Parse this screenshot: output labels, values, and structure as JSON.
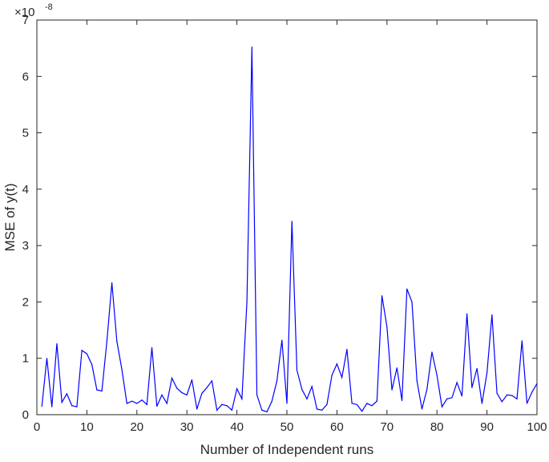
{
  "chart_data": {
    "type": "line",
    "xlabel": "Number of Independent runs",
    "ylabel": "MSE of y(t)",
    "y_multiplier": "×10",
    "y_exponent": "-8",
    "xlim": [
      0,
      100
    ],
    "ylim": [
      0,
      7
    ],
    "xticks": [
      "0",
      "10",
      "20",
      "30",
      "40",
      "50",
      "60",
      "70",
      "80",
      "90",
      "100"
    ],
    "yticks": [
      "0",
      "1",
      "2",
      "3",
      "4",
      "5",
      "6",
      "7"
    ],
    "grid": false,
    "line_color": "#0000ff",
    "x": [
      1,
      2,
      3,
      4,
      5,
      6,
      7,
      8,
      9,
      10,
      11,
      12,
      13,
      14,
      15,
      16,
      17,
      18,
      19,
      20,
      21,
      22,
      23,
      24,
      25,
      26,
      27,
      28,
      29,
      30,
      31,
      32,
      33,
      34,
      35,
      36,
      37,
      38,
      39,
      40,
      41,
      42,
      43,
      44,
      45,
      46,
      47,
      48,
      49,
      50,
      51,
      52,
      53,
      54,
      55,
      56,
      57,
      58,
      59,
      60,
      61,
      62,
      63,
      64,
      65,
      66,
      67,
      68,
      69,
      70,
      71,
      72,
      73,
      74,
      75,
      76,
      77,
      78,
      79,
      80,
      81,
      82,
      83,
      84,
      85,
      86,
      87,
      88,
      89,
      90,
      91,
      92,
      93,
      94,
      95,
      96,
      97,
      98,
      99,
      100
    ],
    "values": [
      0.15,
      1.0,
      0.14,
      1.26,
      0.22,
      0.37,
      0.16,
      0.14,
      1.14,
      1.08,
      0.89,
      0.44,
      0.42,
      1.3,
      2.34,
      1.3,
      0.8,
      0.2,
      0.24,
      0.2,
      0.26,
      0.18,
      1.19,
      0.15,
      0.35,
      0.2,
      0.65,
      0.47,
      0.39,
      0.35,
      0.62,
      0.1,
      0.38,
      0.48,
      0.6,
      0.08,
      0.18,
      0.16,
      0.08,
      0.46,
      0.28,
      2.0,
      6.52,
      0.35,
      0.08,
      0.05,
      0.24,
      0.6,
      1.32,
      0.2,
      3.43,
      0.79,
      0.45,
      0.28,
      0.5,
      0.1,
      0.08,
      0.18,
      0.7,
      0.9,
      0.66,
      1.16,
      0.2,
      0.18,
      0.06,
      0.2,
      0.16,
      0.24,
      2.11,
      1.56,
      0.44,
      0.83,
      0.25,
      2.23,
      2.0,
      0.6,
      0.1,
      0.45,
      1.11,
      0.7,
      0.14,
      0.28,
      0.3,
      0.57,
      0.33,
      1.79,
      0.48,
      0.82,
      0.2,
      0.74,
      1.77,
      0.38,
      0.23,
      0.35,
      0.34,
      0.28,
      1.31,
      0.2,
      0.4,
      0.55
    ]
  }
}
